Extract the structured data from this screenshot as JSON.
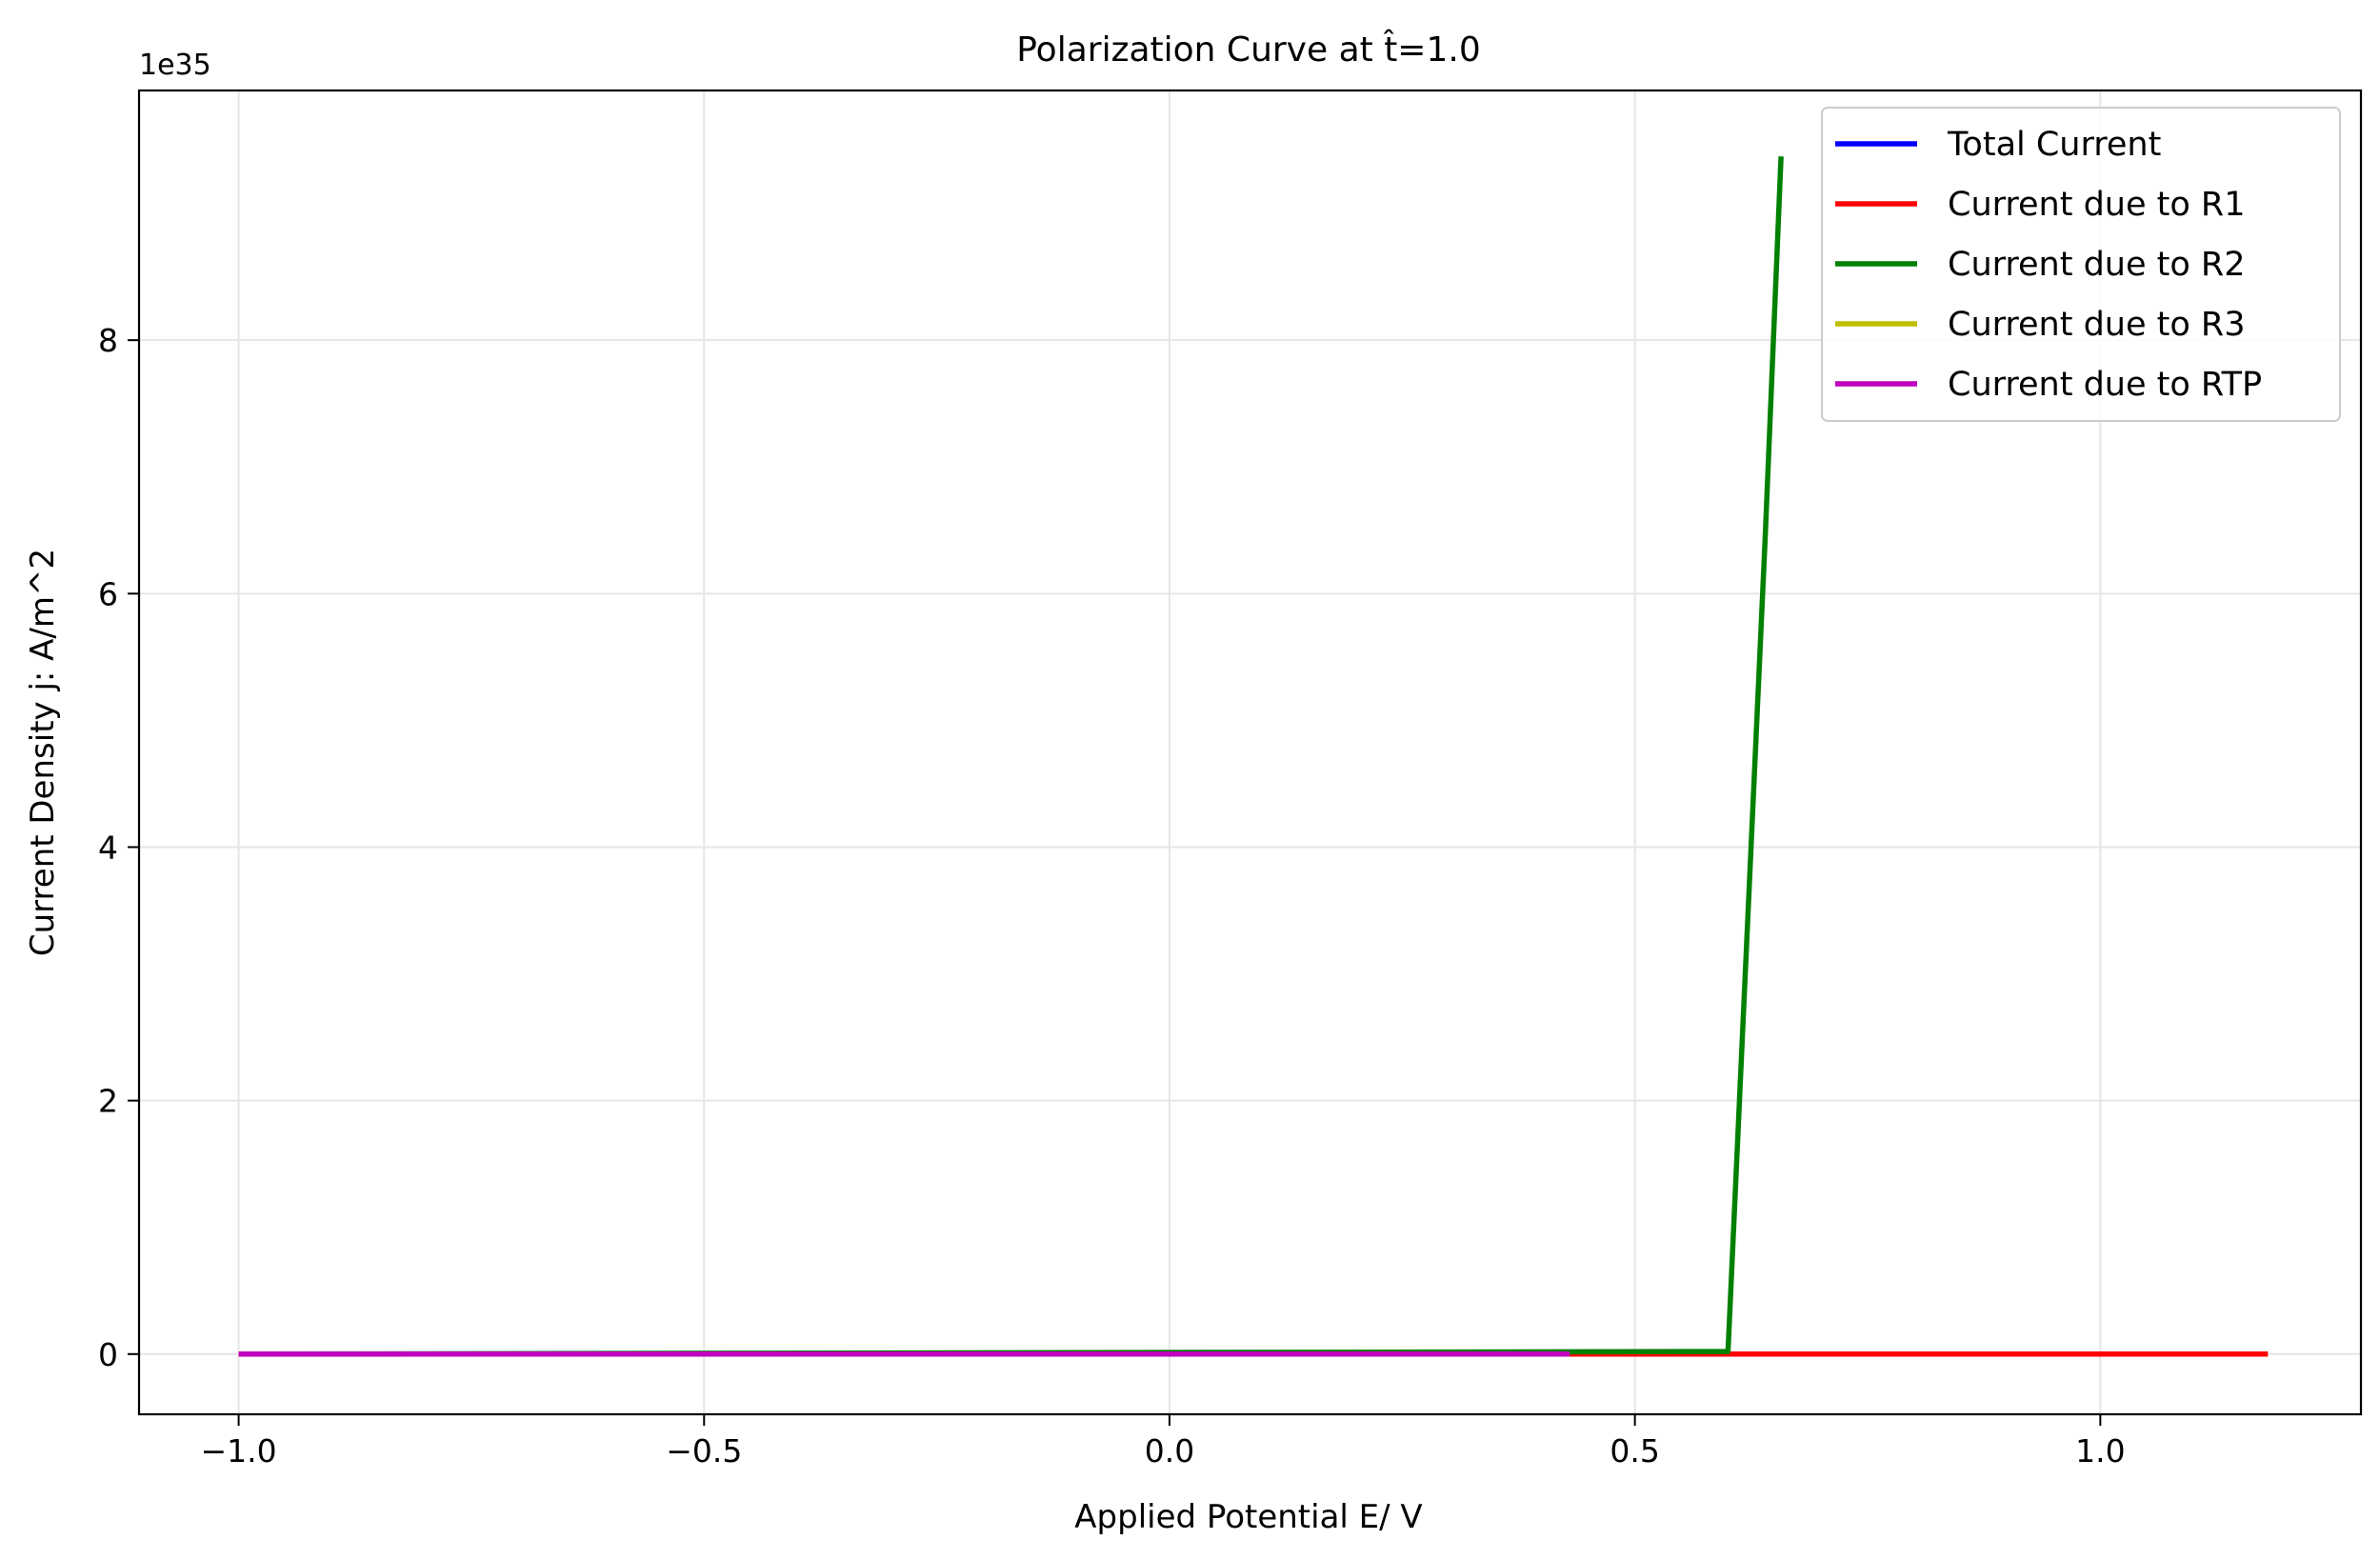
{
  "chart_data": {
    "type": "line",
    "title": "Polarization Curve at t̂=1.0",
    "xlabel": "Applied Potential E/ V",
    "ylabel": "Current Density j: A/m^2",
    "y_offset_text": "1e35",
    "y_scale_factor": 1e+35,
    "xlim": [
      -1.107,
      1.28
    ],
    "ylim": [
      -0.475,
      9.97
    ],
    "x_ticks": [
      -1.0,
      -0.5,
      0.0,
      0.5,
      1.0
    ],
    "x_tick_labels": [
      "−1.0",
      "−0.5",
      "0.0",
      "0.5",
      "1.0"
    ],
    "y_ticks": [
      0,
      2,
      4,
      6,
      8
    ],
    "y_tick_labels": [
      "0",
      "2",
      "4",
      "6",
      "8"
    ],
    "grid": true,
    "legend_position": "top-right",
    "series": [
      {
        "name": "Total Current",
        "color": "#0000ff",
        "x": [
          -1.0,
          0.43
        ],
        "y": [
          0,
          0
        ]
      },
      {
        "name": "Current due to R1",
        "color": "#ff0000",
        "x": [
          -1.0,
          0.6,
          1.18
        ],
        "y": [
          0,
          0,
          0
        ]
      },
      {
        "name": "Current due to R2",
        "color": "#008000",
        "x": [
          -1.0,
          0.6,
          0.64,
          0.657
        ],
        "y": [
          0,
          0.02,
          6.45,
          9.45
        ]
      },
      {
        "name": "Current due to R3",
        "color": "#bfbf00",
        "x": [
          -1.0,
          0.43
        ],
        "y": [
          0,
          0
        ]
      },
      {
        "name": "Current due to RTP",
        "color": "#bf00bf",
        "x": [
          -1.0,
          0.43
        ],
        "y": [
          0,
          0
        ]
      }
    ]
  }
}
